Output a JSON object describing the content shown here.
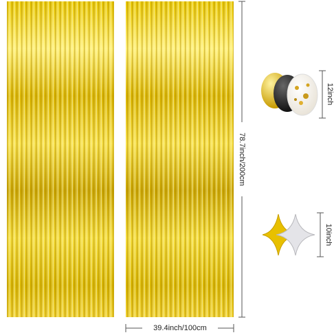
{
  "dimensions": {
    "height": "78.7inch/200cm",
    "width": "39.4inch/100cm",
    "balloon_size": "12inch",
    "star_size": "10inch"
  }
}
